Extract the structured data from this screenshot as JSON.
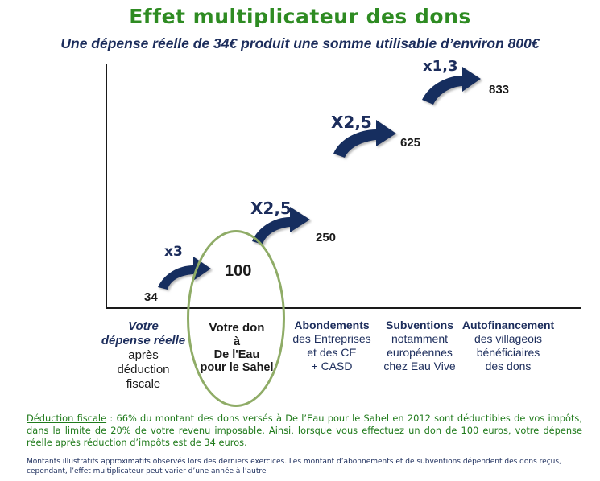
{
  "title": "Effet multiplicateur des dons",
  "subtitle": "Une dépense réelle de 34€ produit une somme utilisable d’environ 800€",
  "values": [
    "34",
    "100",
    "250",
    "625",
    "833"
  ],
  "multipliers": [
    "x3",
    "X2,5",
    "X2,5",
    "x1,3"
  ],
  "columns": [
    {
      "heading_1": "Votre",
      "heading_2": "dépense réelle",
      "lines": [
        "après",
        "déduction",
        "fiscale"
      ]
    },
    {
      "heading_1": "Votre don",
      "heading_2": "à",
      "lines": [
        "De l'Eau",
        "pour le Sahel"
      ]
    },
    {
      "heading": "Abondements",
      "lines": [
        "des Entreprises",
        "et des CE",
        "+ CASD"
      ]
    },
    {
      "heading": "Subventions",
      "lines": [
        "notamment",
        "européennes",
        "chez Eau Vive"
      ]
    },
    {
      "heading": "Autofinancement",
      "lines": [
        "des villageois",
        "bénéficiaires",
        "des dons"
      ]
    }
  ],
  "note": {
    "label": "Déduction fiscale",
    "text": " : 66% du montant des dons versés à De l’Eau pour le Sahel en 2012 sont déductibles de vos impôts, dans la limite de 20% de votre revenu imposable. Ainsi, lorsque vous effectuez un don de 100 euros, votre dépense réelle après réduction d’impôts est de 34 euros."
  },
  "footnote": "Montants illustratifs approximatifs observés lors des derniers exercices. Les montant d’abonnements et de subventions dépendent des dons reçus, cependant, l’effet multiplicateur peut varier d’une année à l’autre",
  "colors": {
    "title": "#2e8b22",
    "arrow": "#172d5e",
    "highlight_ellipse": "#8fac67",
    "text_dark": "#1c2d5c"
  }
}
